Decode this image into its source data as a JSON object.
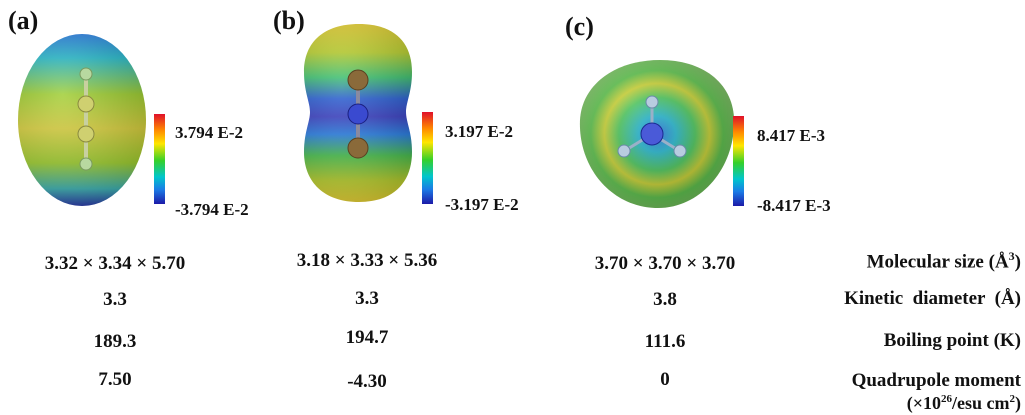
{
  "panels": [
    {
      "letter": "(a)",
      "scale_max": "3.794 E-2",
      "scale_min": "-3.794 E-2"
    },
    {
      "letter": "(b)",
      "scale_max": "3.197 E-2",
      "scale_min": "-3.197 E-2"
    },
    {
      "letter": "(c)",
      "scale_max": "8.417 E-3",
      "scale_min": "-8.417 E-3"
    }
  ],
  "properties": [
    {
      "label": "Molecular size (Å",
      "label_sup": "3",
      "label_tail": ")",
      "values": [
        "3.32 × 3.34 × 5.70",
        "3.18 × 3.33 × 5.36",
        "3.70 × 3.70 × 3.70"
      ]
    },
    {
      "label": "Kinetic  diameter  (Å)",
      "values": [
        "3.3",
        "3.3",
        "3.8"
      ]
    },
    {
      "label": "Boiling point (K)",
      "values": [
        "189.3",
        "194.7",
        "111.6"
      ]
    },
    {
      "label": "Quadrupole moment",
      "label_line2_a": "(×10",
      "label_line2_sup": "26",
      "label_line2_b": "/esu cm",
      "label_line2_sup2": "2",
      "label_line2_c": ")",
      "values": [
        "7.50",
        "-4.30",
        "0"
      ]
    }
  ],
  "colors": {
    "scale_top": "#e0102a",
    "scale_bottom": "#1c1aa8"
  }
}
